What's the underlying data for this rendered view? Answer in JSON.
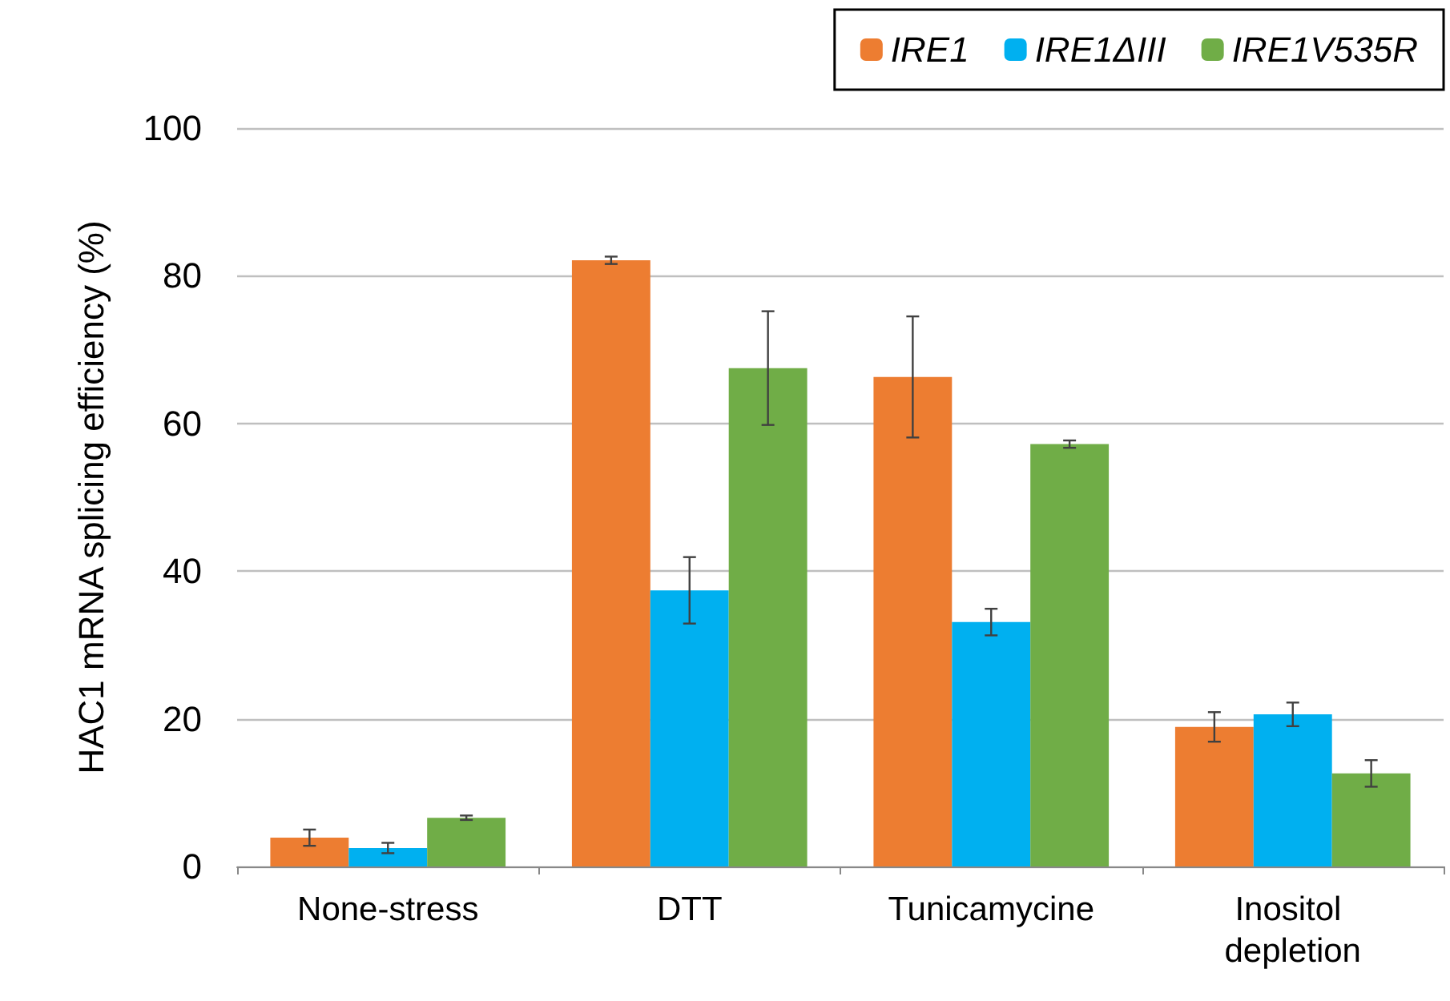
{
  "chart_data": {
    "type": "bar",
    "ylabel": "HAC1 mRNA splicing efficiency (%)",
    "categories": [
      "None-stress",
      "DTT",
      "Tunicamycine",
      "Inositol depletion"
    ],
    "series": [
      {
        "name": "IRE1",
        "color": "#ed7d31",
        "values": [
          3.9,
          82.1,
          66.3,
          18.9
        ],
        "errors": [
          1.1,
          0.5,
          8.2,
          2
        ]
      },
      {
        "name": "IRE1ΔIII",
        "color": "#00b0f0",
        "values": [
          2.5,
          37.4,
          33.1,
          20.6
        ],
        "errors": [
          0.7,
          4.5,
          1.8,
          1.6
        ]
      },
      {
        "name": "IRE1V535R",
        "color": "#70ad47",
        "values": [
          6.6,
          67.5,
          57.2,
          12.6
        ],
        "errors": [
          0.3,
          7.7,
          0.5,
          1.8
        ]
      }
    ],
    "ylim": [
      0,
      100
    ],
    "yticks": [
      0,
      20,
      40,
      60,
      80,
      100
    ],
    "grid": "y",
    "legend": "top right"
  }
}
